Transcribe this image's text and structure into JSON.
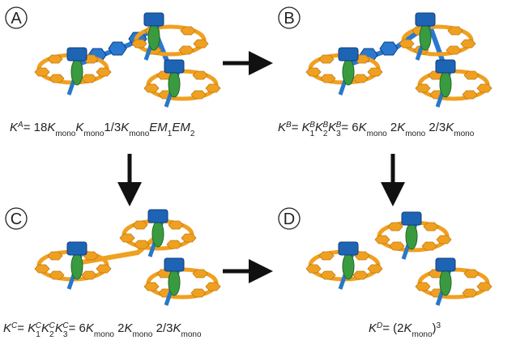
{
  "panels": [
    {
      "label": "A",
      "equation": [
        "K",
        "A",
        "= 18",
        "K",
        "mono",
        "K",
        "mono",
        "1/3",
        "K",
        "mono",
        "EM",
        "1",
        "EM",
        "2"
      ]
    },
    {
      "label": "B",
      "equation": [
        "K",
        "B",
        "= ",
        "K",
        "1",
        "B",
        "K",
        "2",
        "B",
        "K",
        "3",
        "B",
        "= 6",
        "K",
        "mono",
        " 2",
        "K",
        "mono",
        " 2/3",
        "K",
        "mono"
      ]
    },
    {
      "label": "C",
      "equation": [
        "K",
        "C",
        "= ",
        "K",
        "1",
        "C",
        "K",
        "2",
        "C",
        "K",
        "3",
        "C",
        "= 6",
        "K",
        "mono",
        " 2",
        "K",
        "mono",
        " 2/3",
        "K",
        "mono"
      ]
    },
    {
      "label": "D",
      "equation": [
        "K",
        "D",
        "= (2",
        "K",
        "mono",
        ")",
        "3"
      ]
    }
  ]
}
